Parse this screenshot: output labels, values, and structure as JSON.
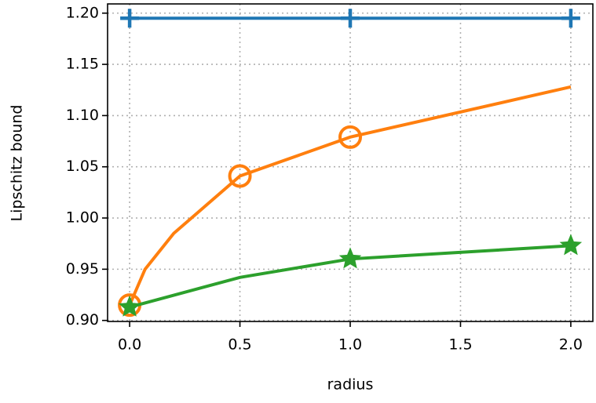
{
  "chart_data": {
    "type": "line",
    "xlabel": "radius",
    "ylabel": "Lipschitz bound",
    "xlim": [
      -0.1,
      2.1
    ],
    "ylim": [
      0.899,
      1.209
    ],
    "xticks": [
      {
        "value": 0,
        "label": "0.0"
      },
      0.5,
      {
        "value": 1,
        "label": "1.0"
      },
      1.5,
      {
        "value": 2,
        "label": "2.0"
      }
    ],
    "yticks": [
      {
        "value": 0.9,
        "label": "0.90"
      },
      0.95,
      {
        "value": 1.0,
        "label": "1.00"
      },
      1.05,
      {
        "value": 1.1,
        "label": "1.10"
      },
      1.15,
      {
        "value": 1.2,
        "label": "1.20"
      }
    ],
    "grid": true,
    "series": [
      {
        "color": "#1f77b4",
        "marker": "plus",
        "x": [
          0,
          1,
          2
        ],
        "values": [
          1.195,
          1.195,
          1.195
        ],
        "markevery": [
          0,
          1,
          2
        ]
      },
      {
        "color": "#ff7f0e",
        "marker": "circle",
        "x": [
          0,
          0.07,
          0.2,
          0.5,
          1,
          2
        ],
        "values": [
          0.915,
          0.95,
          0.985,
          1.041,
          1.079,
          1.128
        ],
        "markevery": [
          0,
          3,
          4
        ]
      },
      {
        "color": "#2ca02c",
        "marker": "star",
        "x": [
          0,
          0.5,
          1,
          2
        ],
        "values": [
          0.913,
          0.942,
          0.96,
          0.973
        ],
        "markevery": [
          0,
          2,
          3
        ]
      }
    ]
  }
}
